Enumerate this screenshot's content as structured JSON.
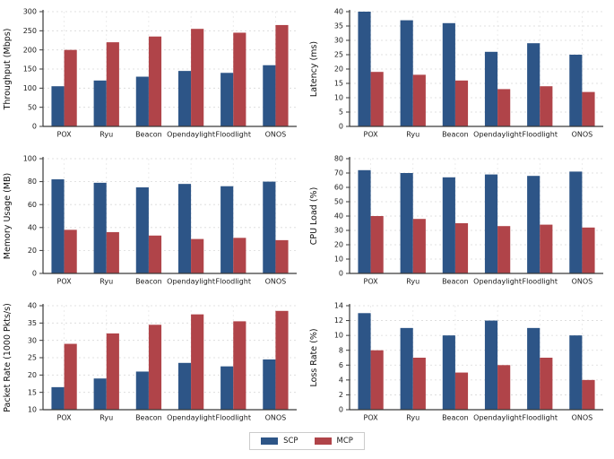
{
  "series_colors": [
    "#2d5587",
    "#b04449"
  ],
  "legend": {
    "items": [
      {
        "label": "SCP",
        "color": "#2d5587"
      },
      {
        "label": "MCP",
        "color": "#b04449"
      }
    ]
  },
  "style": {
    "grid_color": "#d9d9d9",
    "vgrid_color": "#e4e4e4",
    "spine_color": "#3a3a3a",
    "text_color": "#1a1a1a"
  },
  "chart_data": [
    {
      "type": "bar",
      "ylabel": "Throughput (Mbps)",
      "categories": [
        "POX",
        "Ryu",
        "Beacon",
        "Opendaylight",
        "Floodlight",
        "ONOS"
      ],
      "series": [
        {
          "name": "SCP",
          "values": [
            105,
            120,
            130,
            145,
            140,
            160
          ]
        },
        {
          "name": "MCP",
          "values": [
            200,
            220,
            235,
            255,
            245,
            265
          ]
        }
      ],
      "ylim": [
        0,
        300
      ],
      "yticks": [
        0,
        50,
        100,
        150,
        200,
        250,
        300
      ],
      "grid": true,
      "legend_position": "figure-bottom"
    },
    {
      "type": "bar",
      "ylabel": "Latency (ms)",
      "categories": [
        "POX",
        "Ryu",
        "Beacon",
        "Opendaylight",
        "Floodlight",
        "ONOS"
      ],
      "series": [
        {
          "name": "SCP",
          "values": [
            40,
            37,
            36,
            26,
            29,
            25
          ]
        },
        {
          "name": "MCP",
          "values": [
            19,
            18,
            16,
            13,
            14,
            12
          ]
        }
      ],
      "ylim": [
        0,
        40
      ],
      "yticks": [
        0,
        5,
        10,
        15,
        20,
        25,
        30,
        35,
        40
      ],
      "grid": true,
      "legend_position": "figure-bottom"
    },
    {
      "type": "bar",
      "ylabel": "Memory Usage (MB)",
      "categories": [
        "POX",
        "Ryu",
        "Beacon",
        "Opendaylight",
        "Floodlight",
        "ONOS"
      ],
      "series": [
        {
          "name": "SCP",
          "values": [
            82,
            79,
            75,
            78,
            76,
            80
          ]
        },
        {
          "name": "MCP",
          "values": [
            38,
            36,
            33,
            30,
            31,
            29
          ]
        }
      ],
      "ylim": [
        0,
        100
      ],
      "yticks": [
        0,
        20,
        40,
        60,
        80,
        100
      ],
      "grid": true,
      "legend_position": "figure-bottom"
    },
    {
      "type": "bar",
      "ylabel": "CPU Load (%)",
      "categories": [
        "POX",
        "Ryu",
        "Beacon",
        "Opendaylight",
        "Floodlight",
        "ONOS"
      ],
      "series": [
        {
          "name": "SCP",
          "values": [
            72,
            70,
            67,
            69,
            68,
            71
          ]
        },
        {
          "name": "MCP",
          "values": [
            40,
            38,
            35,
            33,
            34,
            32
          ]
        }
      ],
      "ylim": [
        0,
        80
      ],
      "yticks": [
        0,
        10,
        20,
        30,
        40,
        50,
        60,
        70,
        80
      ],
      "grid": true,
      "legend_position": "figure-bottom"
    },
    {
      "type": "bar",
      "ylabel": "Packet Rate (1000 Pkts/s)",
      "categories": [
        "POX",
        "Ryu",
        "Beacon",
        "Opendaylight",
        "Floodlight",
        "ONOS"
      ],
      "series": [
        {
          "name": "SCP",
          "values": [
            16.5,
            19,
            21,
            23.5,
            22.5,
            24.5
          ]
        },
        {
          "name": "MCP",
          "values": [
            29,
            32,
            34.5,
            37.5,
            35.5,
            38.5
          ]
        }
      ],
      "ylim": [
        10,
        40
      ],
      "yticks": [
        10,
        15,
        20,
        25,
        30,
        35,
        40
      ],
      "grid": true,
      "legend_position": "figure-bottom"
    },
    {
      "type": "bar",
      "ylabel": "Loss Rate (%)",
      "categories": [
        "POX",
        "Ryu",
        "Beacon",
        "Opendaylight",
        "Floodlight",
        "ONOS"
      ],
      "series": [
        {
          "name": "SCP",
          "values": [
            13,
            11,
            10,
            12,
            11,
            10
          ]
        },
        {
          "name": "MCP",
          "values": [
            8,
            7,
            5,
            6,
            7,
            4
          ]
        }
      ],
      "ylim": [
        0,
        14
      ],
      "yticks": [
        0,
        2,
        4,
        6,
        8,
        10,
        12,
        14
      ],
      "grid": true,
      "legend_position": "figure-bottom"
    }
  ]
}
